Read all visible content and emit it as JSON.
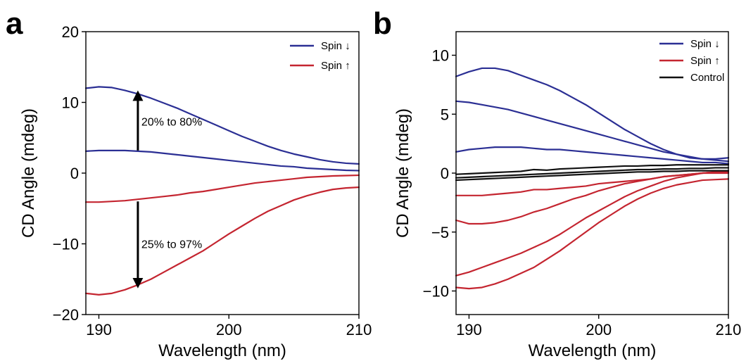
{
  "colors": {
    "spin_down": "#2b2f94",
    "spin_up": "#c42530",
    "control": "#111111",
    "axis": "#000000"
  },
  "chart_data": [
    {
      "panel": "a",
      "type": "line",
      "xlabel": "Wavelength (nm)",
      "ylabel": "CD Angle (mdeg)",
      "xlim": [
        189,
        210
      ],
      "ylim": [
        -20,
        20
      ],
      "xticks": [
        190,
        200,
        210
      ],
      "yticks": [
        20,
        10,
        0,
        -10,
        -20
      ],
      "xtick_labels": [
        "190",
        "200",
        "210"
      ],
      "ytick_labels": [
        "20",
        "10",
        "0",
        "−10",
        "−20"
      ],
      "legend": {
        "position": "top-right",
        "entries": [
          {
            "label": "Spin ↓",
            "color_key": "spin_down"
          },
          {
            "label": "Spin ↑",
            "color_key": "spin_up"
          }
        ]
      },
      "series": [
        {
          "name": "Spin ↓",
          "color_key": "spin_down",
          "x": [
            189,
            190,
            191,
            192,
            193,
            194,
            195,
            196,
            197,
            198,
            199,
            200,
            201,
            202,
            203,
            204,
            205,
            206,
            207,
            208,
            209,
            210
          ],
          "y": [
            12.0,
            12.2,
            12.1,
            11.7,
            11.2,
            10.6,
            9.9,
            9.2,
            8.4,
            7.6,
            6.8,
            6.0,
            5.2,
            4.5,
            3.8,
            3.2,
            2.7,
            2.3,
            1.9,
            1.6,
            1.4,
            1.3
          ]
        },
        {
          "name": "Spin ↓",
          "color_key": "spin_down",
          "x": [
            189,
            190,
            191,
            192,
            193,
            194,
            195,
            196,
            197,
            198,
            199,
            200,
            201,
            202,
            203,
            204,
            205,
            206,
            207,
            208,
            209,
            210
          ],
          "y": [
            3.1,
            3.2,
            3.2,
            3.2,
            3.1,
            3.0,
            2.8,
            2.6,
            2.4,
            2.2,
            2.0,
            1.8,
            1.6,
            1.4,
            1.2,
            1.0,
            0.9,
            0.7,
            0.6,
            0.5,
            0.4,
            0.35
          ]
        },
        {
          "name": "Spin ↑",
          "color_key": "spin_up",
          "x": [
            189,
            190,
            191,
            192,
            193,
            194,
            195,
            196,
            197,
            198,
            199,
            200,
            201,
            202,
            203,
            204,
            205,
            206,
            207,
            208,
            209,
            210
          ],
          "y": [
            -4.1,
            -4.1,
            -4.0,
            -3.9,
            -3.7,
            -3.5,
            -3.3,
            -3.1,
            -2.8,
            -2.6,
            -2.3,
            -2.0,
            -1.7,
            -1.4,
            -1.2,
            -1.0,
            -0.8,
            -0.6,
            -0.5,
            -0.4,
            -0.35,
            -0.3
          ]
        },
        {
          "name": "Spin ↑",
          "color_key": "spin_up",
          "x": [
            189,
            190,
            191,
            192,
            193,
            194,
            195,
            196,
            197,
            198,
            199,
            200,
            201,
            202,
            203,
            204,
            205,
            206,
            207,
            208,
            209,
            210
          ],
          "y": [
            -17.0,
            -17.2,
            -17.0,
            -16.5,
            -15.8,
            -15.0,
            -14.0,
            -13.0,
            -12.0,
            -11.0,
            -9.8,
            -8.6,
            -7.5,
            -6.4,
            -5.4,
            -4.6,
            -3.8,
            -3.2,
            -2.7,
            -2.3,
            -2.1,
            -2.0
          ]
        }
      ],
      "annotations": [
        {
          "text": "20% to 80%",
          "arrow_x": 193,
          "arrow_from": 3.2,
          "arrow_to": 11.4
        },
        {
          "text": "25% to 97%",
          "arrow_x": 193,
          "arrow_from": -4.0,
          "arrow_to": -16.0
        }
      ]
    },
    {
      "panel": "b",
      "type": "line",
      "xlabel": "Wavelength (nm)",
      "ylabel": "CD Angle (mdeg)",
      "xlim": [
        189,
        210
      ],
      "ylim": [
        -12,
        12
      ],
      "xticks": [
        190,
        200,
        210
      ],
      "yticks": [
        10,
        5,
        0,
        -5,
        -10
      ],
      "xtick_labels": [
        "190",
        "200",
        "210"
      ],
      "ytick_labels": [
        "10",
        "5",
        "0",
        "−5",
        "−10"
      ],
      "legend": {
        "position": "top-right",
        "entries": [
          {
            "label": "Spin ↓",
            "color_key": "spin_down"
          },
          {
            "label": "Spin ↑",
            "color_key": "spin_up"
          },
          {
            "label": "Control",
            "color_key": "control"
          }
        ]
      },
      "series": [
        {
          "name": "Spin ↓",
          "color_key": "spin_down",
          "x": [
            189,
            190,
            191,
            192,
            193,
            194,
            195,
            196,
            197,
            198,
            199,
            200,
            201,
            202,
            203,
            204,
            205,
            206,
            207,
            208,
            209,
            210
          ],
          "y": [
            8.2,
            8.6,
            8.9,
            8.9,
            8.7,
            8.3,
            7.9,
            7.5,
            7.0,
            6.4,
            5.8,
            5.1,
            4.4,
            3.7,
            3.1,
            2.5,
            2.0,
            1.6,
            1.3,
            1.2,
            1.2,
            1.3
          ]
        },
        {
          "name": "Spin ↓",
          "color_key": "spin_down",
          "x": [
            189,
            190,
            191,
            192,
            193,
            194,
            195,
            196,
            197,
            198,
            199,
            200,
            201,
            202,
            203,
            204,
            205,
            206,
            207,
            208,
            209,
            210
          ],
          "y": [
            6.1,
            6.0,
            5.8,
            5.6,
            5.4,
            5.1,
            4.8,
            4.5,
            4.2,
            3.9,
            3.6,
            3.3,
            3.0,
            2.7,
            2.4,
            2.1,
            1.8,
            1.6,
            1.4,
            1.2,
            1.1,
            1.0
          ]
        },
        {
          "name": "Spin ↓",
          "color_key": "spin_down",
          "x": [
            189,
            190,
            191,
            192,
            193,
            194,
            195,
            196,
            197,
            198,
            199,
            200,
            201,
            202,
            203,
            204,
            205,
            206,
            207,
            208,
            209,
            210
          ],
          "y": [
            1.8,
            2.0,
            2.1,
            2.2,
            2.2,
            2.2,
            2.1,
            2.0,
            2.0,
            1.9,
            1.8,
            1.7,
            1.6,
            1.5,
            1.4,
            1.3,
            1.2,
            1.1,
            1.0,
            0.9,
            0.9,
            0.8
          ]
        },
        {
          "name": "Spin ↑",
          "color_key": "spin_up",
          "x": [
            189,
            190,
            191,
            192,
            193,
            194,
            195,
            196,
            197,
            198,
            199,
            200,
            201,
            202,
            203,
            204,
            205,
            206,
            207,
            208,
            209,
            210
          ],
          "y": [
            -1.9,
            -1.9,
            -1.9,
            -1.8,
            -1.7,
            -1.6,
            -1.4,
            -1.4,
            -1.3,
            -1.2,
            -1.1,
            -0.9,
            -0.8,
            -0.7,
            -0.6,
            -0.5,
            -0.3,
            -0.2,
            -0.1,
            0.0,
            0.0,
            0.0
          ]
        },
        {
          "name": "Spin ↑",
          "color_key": "spin_up",
          "x": [
            189,
            190,
            191,
            192,
            193,
            194,
            195,
            196,
            197,
            198,
            199,
            200,
            201,
            202,
            203,
            204,
            205,
            206,
            207,
            208,
            209,
            210
          ],
          "y": [
            -4.0,
            -4.3,
            -4.3,
            -4.2,
            -4.0,
            -3.7,
            -3.3,
            -3.0,
            -2.6,
            -2.2,
            -1.9,
            -1.5,
            -1.2,
            -0.9,
            -0.7,
            -0.5,
            -0.3,
            -0.2,
            -0.1,
            0.0,
            0.1,
            0.1
          ]
        },
        {
          "name": "Spin ↑",
          "color_key": "spin_up",
          "x": [
            189,
            190,
            191,
            192,
            193,
            194,
            195,
            196,
            197,
            198,
            199,
            200,
            201,
            202,
            203,
            204,
            205,
            206,
            207,
            208,
            209,
            210
          ],
          "y": [
            -8.7,
            -8.4,
            -8.0,
            -7.6,
            -7.2,
            -6.8,
            -6.3,
            -5.8,
            -5.2,
            -4.5,
            -3.8,
            -3.2,
            -2.6,
            -2.0,
            -1.5,
            -1.1,
            -0.7,
            -0.4,
            -0.2,
            0.0,
            0.1,
            0.2
          ]
        },
        {
          "name": "Spin ↑",
          "color_key": "spin_up",
          "x": [
            189,
            190,
            191,
            192,
            193,
            194,
            195,
            196,
            197,
            198,
            199,
            200,
            201,
            202,
            203,
            204,
            205,
            206,
            207,
            208,
            209,
            210
          ],
          "y": [
            -9.7,
            -9.8,
            -9.7,
            -9.4,
            -9.0,
            -8.5,
            -8.0,
            -7.3,
            -6.6,
            -5.8,
            -5.0,
            -4.2,
            -3.5,
            -2.8,
            -2.2,
            -1.7,
            -1.3,
            -1.0,
            -0.8,
            -0.6,
            -0.55,
            -0.5
          ]
        },
        {
          "name": "Control",
          "color_key": "control",
          "x": [
            189,
            190,
            191,
            192,
            193,
            194,
            195,
            196,
            197,
            198,
            199,
            200,
            201,
            202,
            203,
            204,
            205,
            206,
            207,
            208,
            209,
            210
          ],
          "y": [
            -0.1,
            -0.05,
            0.0,
            0.05,
            0.1,
            0.15,
            0.3,
            0.25,
            0.35,
            0.4,
            0.45,
            0.5,
            0.55,
            0.6,
            0.6,
            0.65,
            0.65,
            0.7,
            0.7,
            0.7,
            0.7,
            0.7
          ]
        },
        {
          "name": "Control",
          "color_key": "control",
          "x": [
            189,
            190,
            191,
            192,
            193,
            194,
            195,
            196,
            197,
            198,
            199,
            200,
            201,
            202,
            203,
            204,
            205,
            206,
            207,
            208,
            209,
            210
          ],
          "y": [
            -0.4,
            -0.35,
            -0.3,
            -0.25,
            -0.2,
            -0.15,
            -0.1,
            -0.05,
            0.0,
            0.05,
            0.1,
            0.15,
            0.2,
            0.25,
            0.3,
            0.3,
            0.35,
            0.35,
            0.4,
            0.4,
            0.45,
            0.45
          ]
        },
        {
          "name": "Control",
          "color_key": "control",
          "x": [
            189,
            190,
            191,
            192,
            193,
            194,
            195,
            196,
            197,
            198,
            199,
            200,
            201,
            202,
            203,
            204,
            205,
            206,
            207,
            208,
            209,
            210
          ],
          "y": [
            -0.6,
            -0.55,
            -0.5,
            -0.45,
            -0.4,
            -0.35,
            -0.3,
            -0.25,
            -0.2,
            -0.15,
            -0.1,
            -0.05,
            0.0,
            0.05,
            0.1,
            0.1,
            0.15,
            0.15,
            0.2,
            0.2,
            0.2,
            0.2
          ]
        }
      ],
      "annotations": []
    }
  ]
}
